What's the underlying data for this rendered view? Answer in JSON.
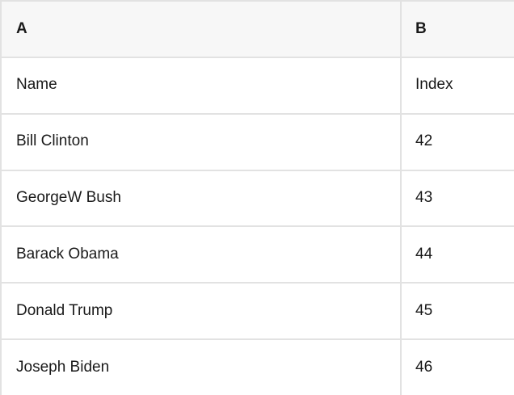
{
  "table": {
    "header": {
      "a": "A",
      "b": "B"
    },
    "rows": [
      {
        "a": "Name",
        "b": "Index"
      },
      {
        "a": "Bill Clinton",
        "b": "42"
      },
      {
        "a": "GeorgeW Bush",
        "b": "43"
      },
      {
        "a": "Barack Obama",
        "b": "44"
      },
      {
        "a": "Donald Trump",
        "b": "45"
      },
      {
        "a": "Joseph Biden",
        "b": "46"
      }
    ]
  },
  "colors": {
    "header_bg": "#f7f7f7",
    "row_bg": "#ffffff",
    "border": "#e2e2e2",
    "text": "#1a1a1a"
  }
}
